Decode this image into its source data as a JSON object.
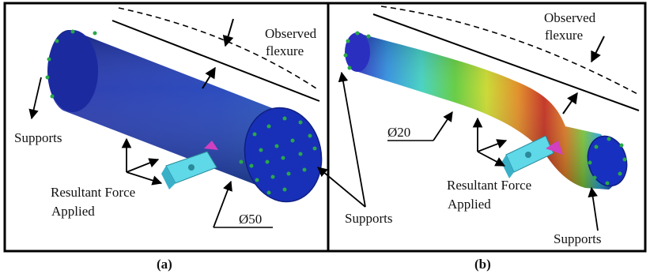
{
  "panel_a": {
    "caption": "(a)",
    "observed_label_line1": "Observed",
    "observed_label_line2": "flexure",
    "supports_label_left": "Supports",
    "force_label_line1": "Resultant Force",
    "force_label_line2": "Applied",
    "diameter_label": "Ø50"
  },
  "panel_b": {
    "caption": "(b)",
    "observed_label_line1": "Observed",
    "observed_label_line2": "flexure",
    "diameter_label": "Ø20",
    "force_label_line1": "Resultant Force",
    "force_label_line2": "Applied",
    "supports_label_bottom": "Supports"
  },
  "shared": {
    "supports_label_center": "Supports"
  },
  "colors": {
    "cylinder_blue": "#1a2fb0",
    "tool_cyan": "#5fd8e8",
    "support_green": "#2aa84a",
    "frame": "#000000"
  }
}
